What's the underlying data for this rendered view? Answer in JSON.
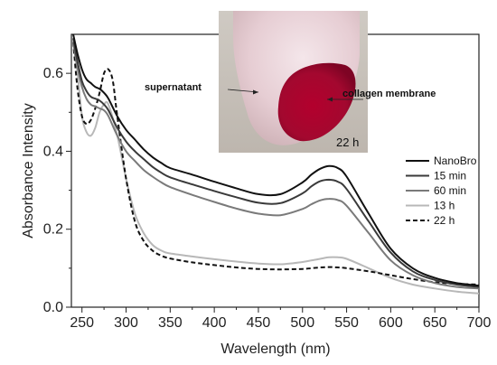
{
  "chart_data": {
    "type": "line",
    "xlabel": "Wavelength (nm)",
    "ylabel": "Absorbance Intensity",
    "xlim": [
      238,
      700
    ],
    "ylim": [
      0.0,
      0.7
    ],
    "xticks": [
      250,
      300,
      350,
      400,
      450,
      500,
      550,
      600,
      650,
      700
    ],
    "yticks": [
      0.0,
      0.2,
      0.4,
      0.6
    ],
    "grid": false,
    "legend_position": "right",
    "series": [
      {
        "name": "NanoBro",
        "color": "#111111",
        "dash": "solid",
        "x": [
          240,
          245,
          250,
          255,
          260,
          265,
          270,
          275,
          280,
          290,
          300,
          310,
          320,
          330,
          340,
          350,
          375,
          400,
          425,
          450,
          475,
          500,
          510,
          520,
          530,
          540,
          550,
          575,
          600,
          625,
          650,
          675,
          700
        ],
        "y": [
          0.7,
          0.65,
          0.61,
          0.585,
          0.575,
          0.565,
          0.56,
          0.55,
          0.535,
          0.49,
          0.455,
          0.43,
          0.405,
          0.385,
          0.37,
          0.357,
          0.34,
          0.322,
          0.305,
          0.29,
          0.29,
          0.32,
          0.34,
          0.355,
          0.362,
          0.357,
          0.335,
          0.24,
          0.15,
          0.1,
          0.075,
          0.062,
          0.055
        ]
      },
      {
        "name": "15 min",
        "color": "#3a3a3a",
        "dash": "solid",
        "x": [
          240,
          245,
          250,
          255,
          260,
          265,
          270,
          275,
          280,
          290,
          300,
          310,
          320,
          330,
          340,
          350,
          375,
          400,
          425,
          450,
          475,
          500,
          510,
          520,
          530,
          540,
          550,
          575,
          600,
          625,
          650,
          675,
          700
        ],
        "y": [
          0.69,
          0.63,
          0.58,
          0.555,
          0.54,
          0.535,
          0.53,
          0.52,
          0.505,
          0.46,
          0.425,
          0.4,
          0.38,
          0.36,
          0.345,
          0.333,
          0.315,
          0.298,
          0.282,
          0.268,
          0.267,
          0.292,
          0.31,
          0.323,
          0.327,
          0.322,
          0.303,
          0.22,
          0.14,
          0.092,
          0.07,
          0.058,
          0.052
        ]
      },
      {
        "name": "60 min",
        "color": "#7a7a7a",
        "dash": "solid",
        "x": [
          240,
          245,
          250,
          255,
          260,
          265,
          270,
          275,
          280,
          290,
          300,
          310,
          320,
          330,
          340,
          350,
          375,
          400,
          425,
          450,
          475,
          500,
          510,
          520,
          530,
          540,
          550,
          575,
          600,
          625,
          650,
          675,
          700
        ],
        "y": [
          0.68,
          0.615,
          0.565,
          0.535,
          0.52,
          0.515,
          0.51,
          0.505,
          0.49,
          0.44,
          0.4,
          0.375,
          0.352,
          0.335,
          0.32,
          0.308,
          0.288,
          0.27,
          0.253,
          0.24,
          0.236,
          0.252,
          0.264,
          0.274,
          0.278,
          0.275,
          0.26,
          0.19,
          0.12,
          0.082,
          0.062,
          0.052,
          0.048
        ]
      },
      {
        "name": "13 h",
        "color": "#b8b8b8",
        "dash": "solid",
        "x": [
          240,
          245,
          250,
          255,
          260,
          265,
          270,
          275,
          280,
          290,
          300,
          310,
          320,
          330,
          340,
          350,
          375,
          400,
          425,
          450,
          475,
          500,
          510,
          520,
          530,
          540,
          550,
          575,
          600,
          625,
          650,
          675,
          700
        ],
        "y": [
          0.68,
          0.6,
          0.49,
          0.45,
          0.44,
          0.46,
          0.5,
          0.52,
          0.52,
          0.44,
          0.33,
          0.24,
          0.19,
          0.16,
          0.145,
          0.138,
          0.13,
          0.123,
          0.117,
          0.112,
          0.11,
          0.116,
          0.12,
          0.124,
          0.128,
          0.128,
          0.124,
          0.1,
          0.075,
          0.058,
          0.048,
          0.04,
          0.035
        ]
      },
      {
        "name": "22 h",
        "color": "#111111",
        "dash": "dashed",
        "x": [
          240,
          245,
          250,
          255,
          260,
          265,
          270,
          275,
          280,
          285,
          290,
          300,
          310,
          320,
          330,
          340,
          350,
          375,
          400,
          425,
          450,
          475,
          500,
          510,
          520,
          530,
          540,
          550,
          575,
          600,
          625,
          650,
          675,
          700
        ],
        "y": [
          0.68,
          0.56,
          0.49,
          0.47,
          0.48,
          0.51,
          0.55,
          0.6,
          0.61,
          0.58,
          0.49,
          0.33,
          0.22,
          0.17,
          0.145,
          0.132,
          0.125,
          0.115,
          0.108,
          0.102,
          0.098,
          0.097,
          0.098,
          0.1,
          0.102,
          0.103,
          0.102,
          0.1,
          0.092,
          0.082,
          0.072,
          0.064,
          0.06,
          0.058
        ]
      }
    ],
    "annotations": [
      {
        "text": "supernatant"
      },
      {
        "text": "collagen membrane"
      },
      {
        "text": "22 h"
      }
    ]
  }
}
